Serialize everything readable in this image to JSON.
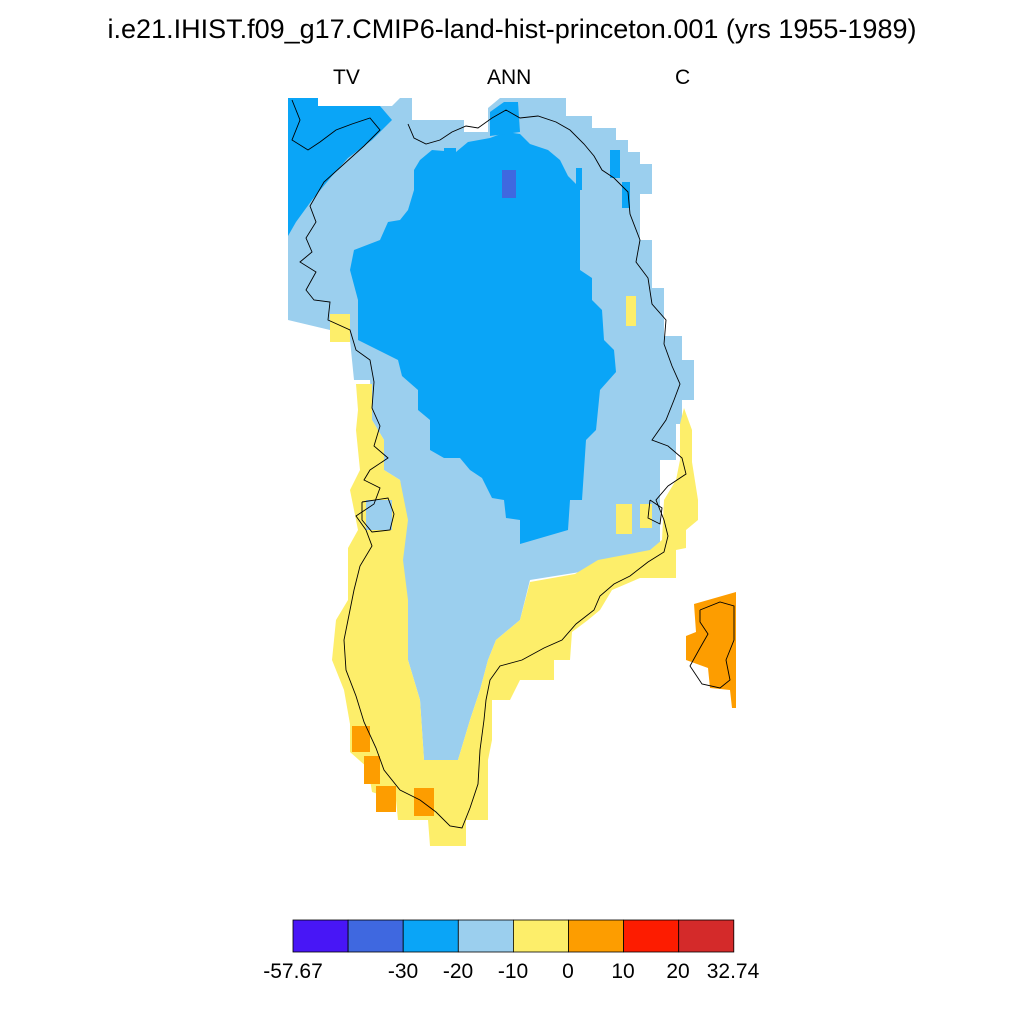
{
  "title": "i.e21.IHIST.f09_g17.CMIP6-land-hist-princeton.001 (yrs 1955-1989)",
  "subtitle": {
    "left": "TV",
    "center": "ANN",
    "right": "C"
  },
  "colorbar": {
    "colors": [
      "#4816f6",
      "#3f68e0",
      "#0aa5f7",
      "#9bcfee",
      "#fdee6a",
      "#fd9d00",
      "#fd1c00",
      "#d42a2a"
    ],
    "labels": [
      "-57.67",
      "-30",
      "-20",
      "-10",
      "0",
      "10",
      "20",
      "32.74"
    ]
  },
  "map": {
    "region": "Greenland",
    "fill_colors": {
      "blue": "#0aa5f7",
      "darkblue": "#3f68e0",
      "lightblue": "#9bcfee",
      "yellow": "#fdee6a",
      "orange": "#fd9d00"
    }
  }
}
